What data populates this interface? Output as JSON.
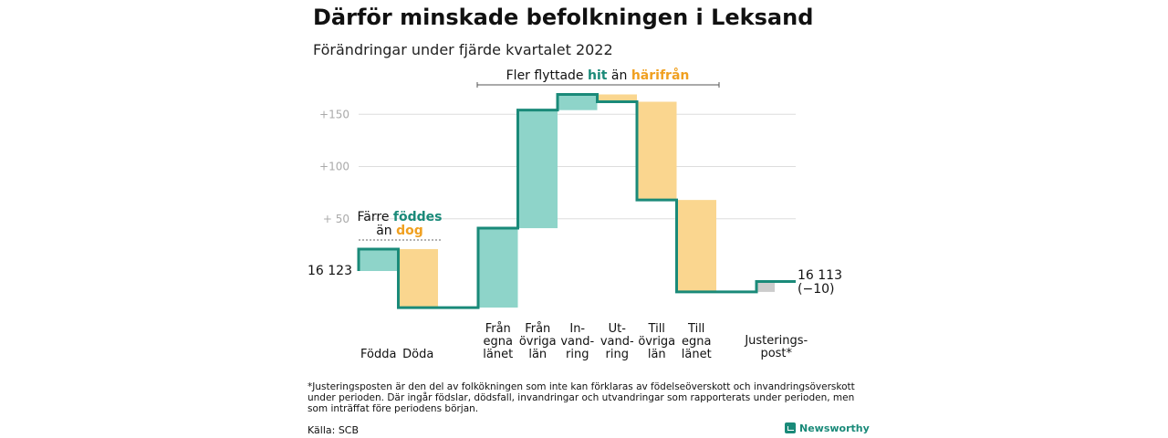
{
  "title": "Därför minskade befolkningen i Leksand",
  "subtitle": "Förändringar under fjärde kvartalet 2022",
  "annotations": {
    "top": {
      "prefix": "Fler flyttade ",
      "hit": "hit",
      "mid": " än ",
      "harifran": "härifrån"
    },
    "left": {
      "line1_prefix": "Färre ",
      "line1_word": "föddes",
      "line2_prefix": "än ",
      "line2_word": "dog"
    }
  },
  "start_label": "16 123",
  "end_label": "16 113",
  "end_change": "(−10)",
  "footnote": "*Justeringsposten är den del av folkökningen som inte kan förklaras av födelseöverskott och invandringsöverskott under perioden. Där ingår födslar, dödsfall, invandringar och utvandringar som rapporterats under perioden, men som inträffat före periodens början.",
  "source": "Källa: SCB",
  "brand": "Newsworthy",
  "colors": {
    "teal": "#1a8a79",
    "teal_fill": "#8ed4c9",
    "orange_fill": "#fad68f",
    "orange_text": "#f0a020",
    "gray_fill": "#cccccc",
    "grid": "#dddddd",
    "tick": "#aaaaaa"
  },
  "chart_data": {
    "type": "waterfall",
    "title": "Därför minskade befolkningen i Leksand",
    "subtitle": "Förändringar under fjärde kvartalet 2022",
    "start": 16123,
    "end": 16113,
    "y_ticks": [
      {
        "value": 150,
        "label": "+150"
      },
      {
        "value": 100,
        "label": "+100"
      },
      {
        "value": 50,
        "label": "+ 50"
      }
    ],
    "ylim": [
      -40,
      175
    ],
    "grid": true,
    "steps": [
      {
        "label": [
          "Födda"
        ],
        "value": 21,
        "kind": "in"
      },
      {
        "label": [
          "Döda"
        ],
        "value": -56,
        "kind": "out"
      },
      {
        "label": [
          "Från",
          "egna",
          "länet"
        ],
        "value": 76,
        "kind": "in"
      },
      {
        "label": [
          "Från",
          "övriga",
          "län"
        ],
        "value": 113,
        "kind": "in"
      },
      {
        "label": [
          "In-",
          "vand-",
          "ring"
        ],
        "value": 15,
        "kind": "in"
      },
      {
        "label": [
          "Ut-",
          "vand-",
          "ring"
        ],
        "value": -7,
        "kind": "out"
      },
      {
        "label": [
          "Till",
          "övriga",
          "län"
        ],
        "value": -94,
        "kind": "out"
      },
      {
        "label": [
          "Till",
          "egna",
          "länet"
        ],
        "value": -88,
        "kind": "out"
      },
      {
        "label": [
          "Justerings-",
          "post*"
        ],
        "value": 10,
        "kind": "adj"
      }
    ]
  }
}
